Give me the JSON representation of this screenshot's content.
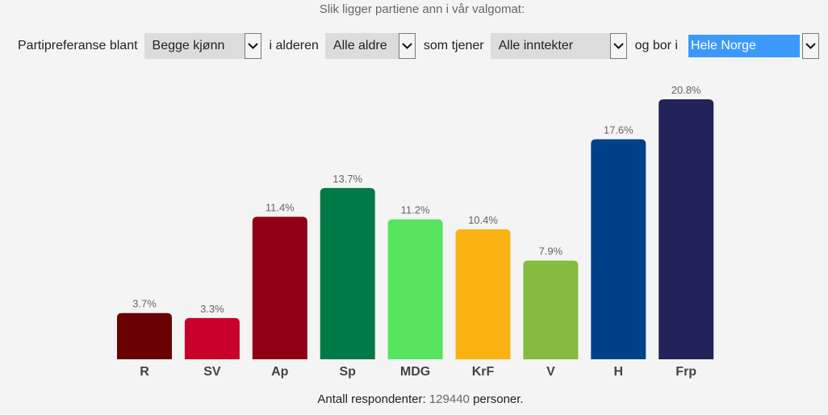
{
  "title": "Slik ligger partiene ann i vår valgomat:",
  "filters": {
    "intro_label": "Partipreferanse blant",
    "gender": "Begge kjønn",
    "age_label": "i alderen",
    "age": "Alle aldre",
    "income_label": "som tjener",
    "income": "Alle inntekter",
    "region_label": "og bor i",
    "region": "Hele Norge"
  },
  "chart_data": {
    "type": "bar",
    "title": "",
    "xlabel": "",
    "ylabel": "",
    "categories": [
      "R",
      "SV",
      "Ap",
      "Sp",
      "MDG",
      "KrF",
      "V",
      "H",
      "Frp"
    ],
    "values": [
      3.7,
      3.3,
      11.4,
      13.7,
      11.2,
      10.4,
      7.9,
      17.6,
      20.8
    ],
    "value_labels": [
      "3.7%",
      "3.3%",
      "11.4%",
      "13.7%",
      "11.2%",
      "10.4%",
      "7.9%",
      "17.6%",
      "20.8%"
    ],
    "colors": [
      "#6b0000",
      "#c8002a",
      "#8f0015",
      "#007a46",
      "#56e35e",
      "#fbb314",
      "#85bc40",
      "#004289",
      "#21235a"
    ],
    "ylim": [
      0,
      20.8
    ],
    "grid": false,
    "legend": "none"
  },
  "footer": {
    "prefix": "Antall respondenter:",
    "count": "129440",
    "suffix": "personer."
  }
}
